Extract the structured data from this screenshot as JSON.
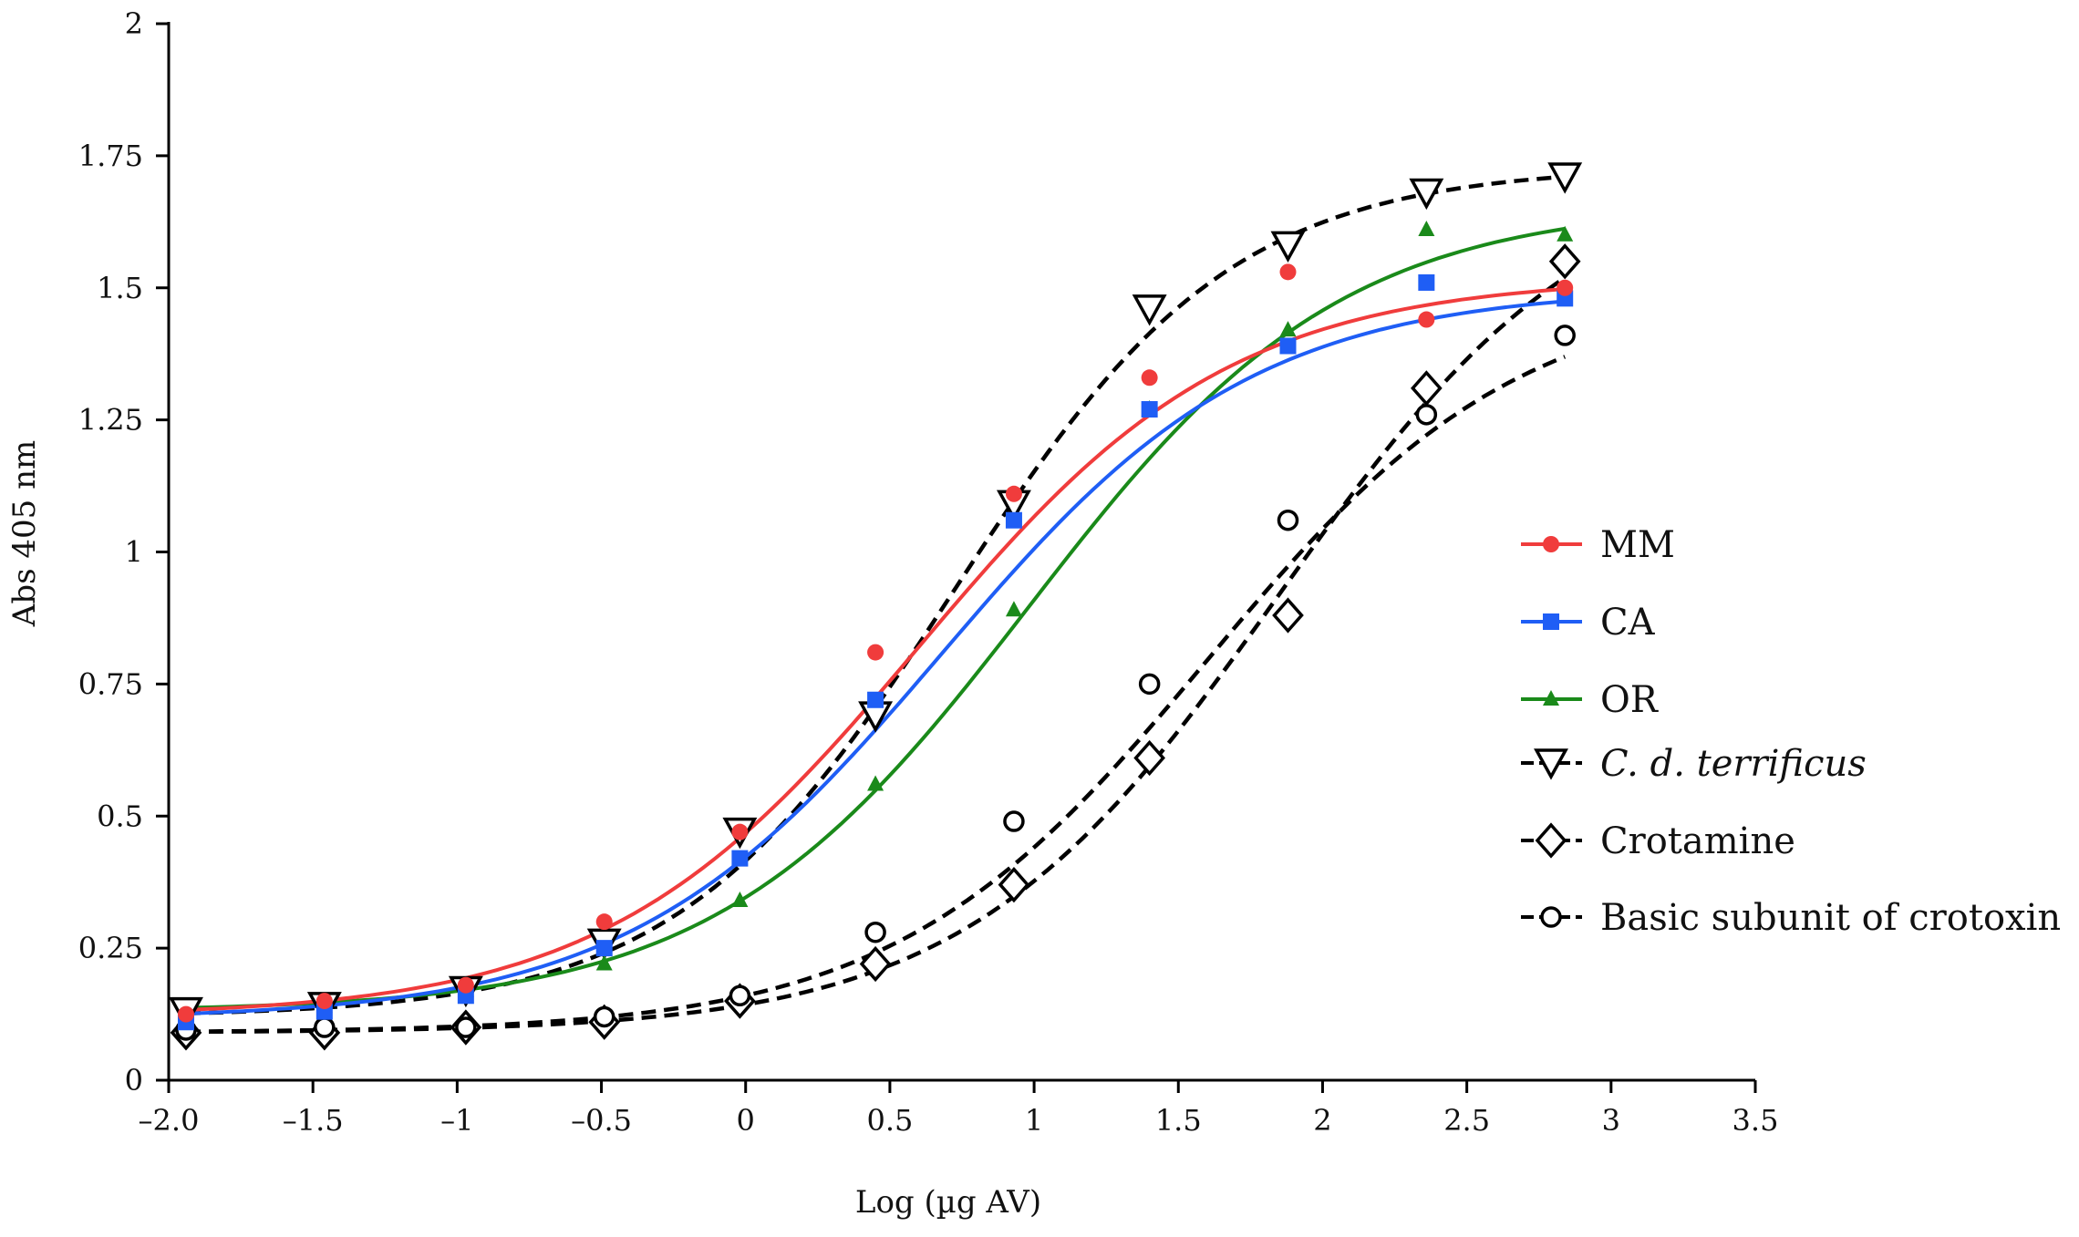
{
  "chart_data": {
    "type": "scatter",
    "title": "",
    "xlabel": "Log (µg AV)",
    "ylabel": "Abs 405 nm",
    "xlim": [
      -2.0,
      3.5
    ],
    "ylim": [
      0,
      2
    ],
    "grid": false,
    "legend_placement": "right",
    "x_ticks": [
      -2,
      -1.5,
      -1,
      -0.5,
      0,
      0.5,
      1,
      1.5,
      2,
      2.5,
      3,
      3.5
    ],
    "x_tick_labels": [
      "–2.0",
      "–1.5",
      "–1",
      "–0.5",
      "0",
      "0.5",
      "1",
      "1.5",
      "2",
      "2.5",
      "3",
      "3.5"
    ],
    "y_ticks": [
      0,
      0.25,
      0.5,
      0.75,
      1,
      1.25,
      1.5,
      1.75,
      2
    ],
    "y_tick_labels": [
      "0",
      "0.25",
      "0.5",
      "0.75",
      "1",
      "1.25",
      "1.5",
      "1.75",
      "2"
    ],
    "x": [
      -1.94,
      -1.46,
      -0.97,
      -0.49,
      -0.02,
      0.45,
      0.93,
      1.4,
      1.88,
      2.36,
      2.84
    ],
    "series": [
      {
        "name": "MM",
        "italic": false,
        "color": "#f03c3c",
        "marker": "circle",
        "filled": true,
        "dashed": false,
        "values": [
          0.125,
          0.15,
          0.18,
          0.3,
          0.47,
          0.81,
          1.11,
          1.33,
          1.53,
          1.44,
          1.5
        ],
        "fit": {
          "bottom": 0.12,
          "top": 1.52,
          "logEC50": 0.6,
          "hill": 0.8
        }
      },
      {
        "name": "CA",
        "italic": false,
        "color": "#1f5ef5",
        "marker": "square",
        "filled": true,
        "dashed": false,
        "values": [
          0.11,
          0.13,
          0.16,
          0.25,
          0.42,
          0.72,
          1.06,
          1.27,
          1.39,
          1.51,
          1.48
        ],
        "fit": {
          "bottom": 0.115,
          "top": 1.5,
          "logEC50": 0.68,
          "hill": 0.8
        }
      },
      {
        "name": "OR",
        "italic": false,
        "color": "#1a8a1a",
        "marker": "triangle",
        "filled": true,
        "dashed": false,
        "values": [
          0.11,
          0.14,
          0.17,
          0.22,
          0.34,
          0.56,
          0.89,
          1.27,
          1.42,
          1.61,
          1.6
        ],
        "fit": {
          "bottom": 0.13,
          "top": 1.66,
          "logEC50": 0.98,
          "hill": 0.8
        }
      },
      {
        "name": "C. d. terrificus",
        "italic": true,
        "color": "#000000",
        "marker": "triangle-down",
        "filled": false,
        "dashed": true,
        "values": [
          0.13,
          0.14,
          0.17,
          0.26,
          0.47,
          0.69,
          1.09,
          1.46,
          1.58,
          1.68,
          1.71
        ],
        "fit": {
          "bottom": 0.12,
          "top": 1.73,
          "logEC50": 0.72,
          "hill": 0.9
        }
      },
      {
        "name": "Crotamine",
        "italic": false,
        "color": "#000000",
        "marker": "diamond",
        "filled": false,
        "dashed": true,
        "values": [
          0.09,
          0.09,
          0.1,
          0.11,
          0.15,
          0.22,
          0.37,
          0.61,
          0.88,
          1.31,
          1.55
        ],
        "fit": {
          "bottom": 0.09,
          "top": 1.75,
          "logEC50": 1.85,
          "hill": 0.8
        }
      },
      {
        "name": "Basic subunit of crotoxin",
        "italic": false,
        "color": "#000000",
        "marker": "open-circle",
        "filled": false,
        "dashed": true,
        "values": [
          0.095,
          0.1,
          0.1,
          0.12,
          0.16,
          0.28,
          0.49,
          0.75,
          1.06,
          1.26,
          1.41
        ],
        "fit": {
          "bottom": 0.09,
          "top": 1.5,
          "logEC50": 1.6,
          "hill": 0.8
        }
      }
    ]
  }
}
